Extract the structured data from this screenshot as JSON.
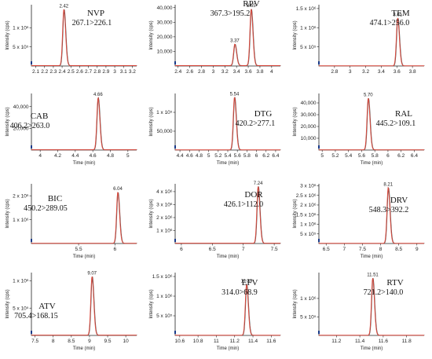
{
  "figure": {
    "y_axis_title": "Intensity (cps)",
    "x_axis_title": "Time (min)"
  },
  "chart_data": [
    {
      "type": "line",
      "compound": "NVP",
      "transition": "267.1>226.1",
      "xlabel": "",
      "ylabel": "Intensity (cps)",
      "xlim": [
        2.05,
        3.25
      ],
      "ylim": [
        0,
        1600000
      ],
      "x_ticks": [
        "2.1",
        "2.2",
        "2.3",
        "2.4",
        "2.5",
        "2.6",
        "2.7",
        "2.8",
        "2.9",
        "3",
        "3.1",
        "3.2"
      ],
      "y_ticks": [
        "5 x 10⁵",
        "1 x 10⁶"
      ],
      "y_tick_values": [
        500000,
        1000000
      ],
      "peaks": [
        {
          "rt": 2.42,
          "label": "2.42",
          "height": 1480000
        }
      ],
      "baseline": 10000
    },
    {
      "type": "line",
      "compound": "RPV",
      "transition": "367.3>195.2",
      "xlabel": "",
      "ylabel": "Intensity (cps)",
      "xlim": [
        2.35,
        4.15
      ],
      "ylim": [
        0,
        42000
      ],
      "x_ticks": [
        "2.4",
        "2.6",
        "2.8",
        "3",
        "3.2",
        "3.4",
        "3.6",
        "3.8",
        "4"
      ],
      "y_ticks": [
        "10,000",
        "20,000",
        "30,000",
        "40,000"
      ],
      "y_tick_values": [
        10000,
        20000,
        30000,
        40000
      ],
      "peaks": [
        {
          "rt": 3.37,
          "label": "3.37",
          "height": 15000
        },
        {
          "rt": 3.65,
          "label": "3.65",
          "height": 39000
        }
      ],
      "baseline": 300
    },
    {
      "type": "line",
      "compound": "TEM",
      "transition": "474.1>256.0",
      "xlabel": "",
      "ylabel": "Intensity (cps)",
      "xlim": [
        2.6,
        3.95
      ],
      "ylim": [
        0,
        1600000
      ],
      "x_ticks": [
        "2.8",
        "3",
        "3.2",
        "3.4",
        "3.6",
        "3.8"
      ],
      "y_ticks": [
        "5 x 10⁵",
        "1 x 10⁶",
        "1.5 x 10⁶"
      ],
      "y_tick_values": [
        500000,
        1000000,
        1500000
      ],
      "peaks": [
        {
          "rt": 3.61,
          "label": "3.61",
          "height": 1250000
        }
      ],
      "baseline": 5000
    },
    {
      "type": "line",
      "compound": "CAB",
      "transition": "406.2>263.0",
      "xlabel": "Time (min)",
      "ylabel": "Intensity (cps)",
      "xlim": [
        3.9,
        5.1
      ],
      "ylim": [
        0,
        52000
      ],
      "x_ticks": [
        "4",
        "4.2",
        "4.4",
        "4.6",
        "4.8",
        "5"
      ],
      "y_ticks": [
        "20,000",
        "40,000"
      ],
      "y_tick_values": [
        20000,
        40000
      ],
      "peaks": [
        {
          "rt": 4.66,
          "label": "4.66",
          "height": 48000
        }
      ],
      "baseline": 300
    },
    {
      "type": "line",
      "compound": "DTG",
      "transition": "420.2>277.1",
      "xlabel": "Time (min)",
      "ylabel": "Intensity (cps)",
      "xlim": [
        4.3,
        6.5
      ],
      "ylim": [
        0,
        150000
      ],
      "x_ticks": [
        "4.4",
        "4.6",
        "4.8",
        "5",
        "5.2",
        "5.4",
        "5.6",
        "5.8",
        "6",
        "6.2",
        "6.4"
      ],
      "y_ticks": [
        "50,000",
        "1 x 10⁵"
      ],
      "y_tick_values": [
        50000,
        100000
      ],
      "peaks": [
        {
          "rt": 5.54,
          "label": "5.54",
          "height": 140000
        }
      ],
      "baseline": 500
    },
    {
      "type": "line",
      "compound": "RAL",
      "transition": "445.2>109.1",
      "xlabel": "Time (min)",
      "ylabel": "Intensity (cps)",
      "xlim": [
        4.95,
        6.55
      ],
      "ylim": [
        0,
        48000
      ],
      "x_ticks": [
        "5",
        "5.2",
        "5.4",
        "5.6",
        "5.8",
        "6",
        "6.2",
        "6.4"
      ],
      "y_ticks": [
        "10,000",
        "20,000",
        "30,000",
        "40,000"
      ],
      "y_tick_values": [
        10000,
        20000,
        30000,
        40000
      ],
      "peaks": [
        {
          "rt": 5.7,
          "label": "5.70",
          "height": 44000
        }
      ],
      "baseline": 200
    },
    {
      "type": "line",
      "compound": "BIC",
      "transition": "450.2>289.05",
      "xlabel": "Time (min)",
      "ylabel": "Intensity (cps)",
      "xlim": [
        4.85,
        6.3
      ],
      "ylim": [
        0,
        2500000
      ],
      "x_ticks": [
        "5.5",
        "6"
      ],
      "y_ticks": [
        "1 x 10⁶",
        "2 x 10⁶"
      ],
      "y_tick_values": [
        1000000,
        2000000
      ],
      "peaks": [
        {
          "rt": 6.04,
          "label": "6.04",
          "height": 2150000
        }
      ],
      "baseline": 10000
    },
    {
      "type": "line",
      "compound": "DOR",
      "transition": "426.1>112.0",
      "xlabel": "Time (min)",
      "ylabel": "Intensity (cps)",
      "xlim": [
        5.9,
        7.6
      ],
      "ylim": [
        0,
        4600000
      ],
      "x_ticks": [
        "6",
        "6.5",
        "7",
        "7.5"
      ],
      "y_ticks": [
        "1 x 10⁶",
        "2 x 10⁶",
        "3 x 10⁶",
        "4 x 10⁶"
      ],
      "y_tick_values": [
        1000000,
        2000000,
        3000000,
        4000000
      ],
      "peaks": [
        {
          "rt": 7.24,
          "label": "7.24",
          "height": 4400000
        }
      ],
      "baseline": 20000
    },
    {
      "type": "line",
      "compound": "DRV",
      "transition": "548.3>392.2",
      "xlabel": "Time (min)",
      "ylabel": "Intensity (cps)",
      "xlim": [
        6.3,
        9.2
      ],
      "ylim": [
        0,
        3100000
      ],
      "x_ticks": [
        "6.5",
        "7",
        "7.5",
        "8",
        "8.5",
        "9"
      ],
      "y_ticks": [
        "5 x 10⁵",
        "1 x 10⁶",
        "1.5 x 10⁶",
        "2 x 10⁶",
        "2.5 x 10⁶",
        "3 x 10⁶"
      ],
      "y_tick_values": [
        500000,
        1000000,
        1500000,
        2000000,
        2500000,
        3000000
      ],
      "peaks": [
        {
          "rt": 8.21,
          "label": "8.21",
          "height": 2900000
        }
      ],
      "baseline": 10000
    },
    {
      "type": "line",
      "compound": "ATV",
      "transition": "705.4>168.15",
      "xlabel": "Time (min)",
      "ylabel": "Intensity (cps)",
      "xlim": [
        7.4,
        10.3
      ],
      "ylim": [
        0,
        1150000
      ],
      "x_ticks": [
        "7.5",
        "8",
        "8.5",
        "9",
        "9.5",
        "10"
      ],
      "y_ticks": [
        "5 x 10⁵",
        "1 x 10⁶"
      ],
      "y_tick_values": [
        500000,
        1000000
      ],
      "peaks": [
        {
          "rt": 9.07,
          "label": "9.07",
          "height": 1080000
        }
      ],
      "baseline": 5000
    },
    {
      "type": "line",
      "compound": "EFV",
      "transition": "314.0>68.9",
      "xlabel": "Time (min)",
      "ylabel": "Intensity (cps)",
      "xlim": [
        10.55,
        11.7
      ],
      "ylim": [
        0,
        1600000
      ],
      "x_ticks": [
        "10.6",
        "10.8",
        "11",
        "11.2",
        "11.4",
        "11.6"
      ],
      "y_ticks": [
        "5 x 10⁵",
        "1 x 10⁶",
        "1.5 x 10⁶"
      ],
      "y_tick_values": [
        500000,
        1000000,
        1500000
      ],
      "peaks": [
        {
          "rt": 11.33,
          "label": "11.33",
          "height": 1300000
        }
      ],
      "baseline": 5000
    },
    {
      "type": "line",
      "compound": "RTV",
      "transition": "721.2>140.0",
      "xlabel": "Time (min)",
      "ylabel": "Intensity (cps)",
      "xlim": [
        11.05,
        11.95
      ],
      "ylim": [
        0,
        1700000
      ],
      "x_ticks": [
        "11.2",
        "11.4",
        "11.6",
        "11.8"
      ],
      "y_ticks": [
        "5 x 10⁵",
        "1 x 10⁶"
      ],
      "y_tick_values": [
        500000,
        1000000
      ],
      "peaks": [
        {
          "rt": 11.51,
          "label": "11.51",
          "height": 1550000
        }
      ],
      "baseline": 5000
    }
  ]
}
